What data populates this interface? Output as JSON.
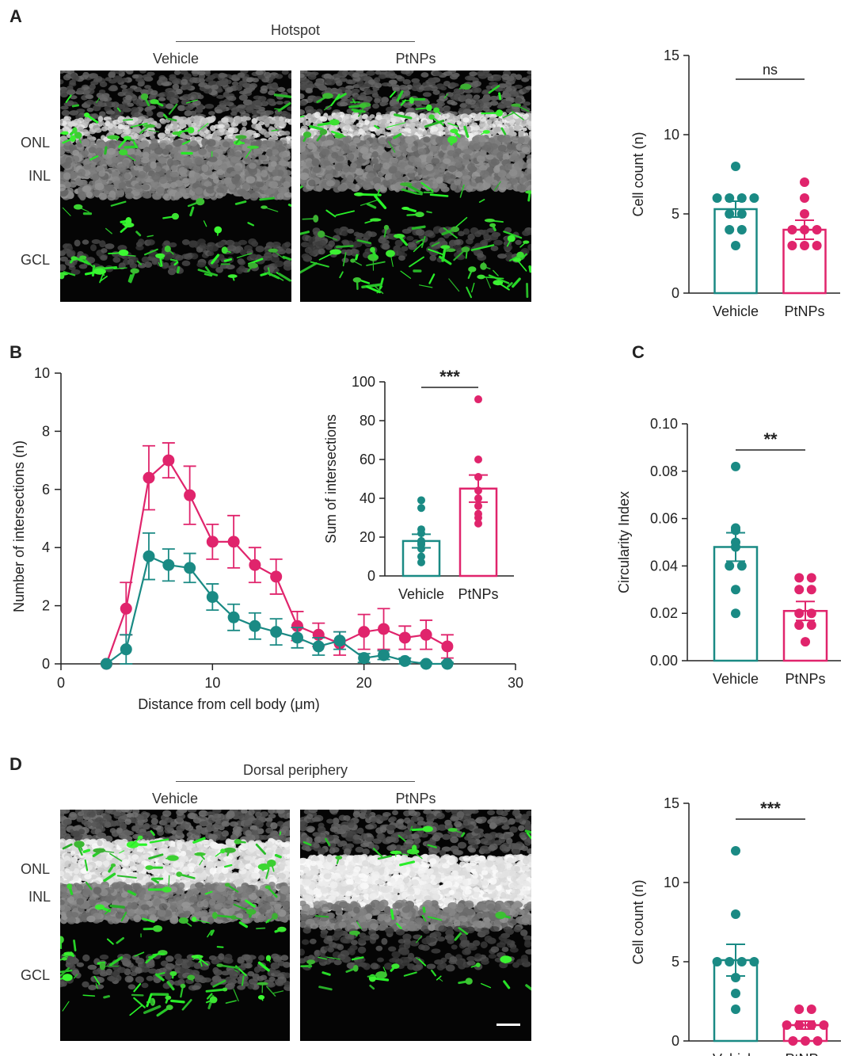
{
  "panels": {
    "a": "A",
    "b": "B",
    "c": "C",
    "d": "D"
  },
  "panel_a": {
    "region": "Hotspot",
    "conditions": [
      "Vehicle",
      "PtNPs"
    ],
    "layers": [
      "ONL",
      "INL",
      "GCL"
    ]
  },
  "panel_d": {
    "region": "Dorsal periphery",
    "conditions": [
      "Vehicle",
      "PtNPs"
    ],
    "layers": [
      "ONL",
      "INL",
      "GCL"
    ]
  },
  "colors": {
    "vehicle": "#1a8a84",
    "ptnps": "#e0246c"
  },
  "chart_data": [
    {
      "id": "a_count",
      "type": "bar",
      "categories": [
        "Vehicle",
        "PtNPs"
      ],
      "values": [
        5.3,
        4.0
      ],
      "sem": [
        0.5,
        0.6
      ],
      "points": [
        [
          8,
          6,
          6,
          6,
          6,
          5,
          5,
          4,
          4,
          3
        ],
        [
          7,
          6,
          5,
          4,
          4,
          4,
          3,
          3,
          3
        ]
      ],
      "ylabel": "Cell count (n)",
      "ylim": [
        0,
        15
      ],
      "yticks": [
        "0",
        "5",
        "10",
        "15"
      ],
      "significance": "ns"
    },
    {
      "id": "b_sholl",
      "type": "line",
      "x": [
        3.0,
        4.3,
        5.8,
        7.1,
        8.5,
        10.0,
        11.4,
        12.8,
        14.2,
        15.6,
        17.0,
        18.4,
        20.0,
        21.3,
        22.7,
        24.1,
        25.5
      ],
      "series": [
        {
          "key": "vehicle",
          "values": [
            0.0,
            0.5,
            3.7,
            3.4,
            3.3,
            2.3,
            1.6,
            1.3,
            1.1,
            0.9,
            0.6,
            0.8,
            0.2,
            0.3,
            0.1,
            0.0,
            0.0
          ],
          "err": [
            0,
            0.5,
            0.8,
            0.55,
            0.5,
            0.45,
            0.45,
            0.45,
            0.45,
            0.35,
            0.3,
            0.3,
            0.15,
            0.15,
            0.1,
            0.05,
            0.05
          ]
        },
        {
          "key": "ptnps",
          "values": [
            0.0,
            1.9,
            6.4,
            7.0,
            5.8,
            4.2,
            4.2,
            3.4,
            3.0,
            1.3,
            1.0,
            0.7,
            1.1,
            1.2,
            0.9,
            1.0,
            0.6
          ],
          "err": [
            0,
            0.9,
            1.1,
            0.6,
            1.0,
            0.6,
            0.9,
            0.6,
            0.6,
            0.5,
            0.4,
            0.4,
            0.6,
            0.7,
            0.4,
            0.5,
            0.4
          ]
        }
      ],
      "xlabel": "Distance from cell body (μm)",
      "ylabel": "Number of intersections (n)",
      "xlim": [
        0,
        30
      ],
      "ylim": [
        0,
        10
      ],
      "xticks": [
        "0",
        "10",
        "20",
        "30"
      ],
      "yticks": [
        "0",
        "2",
        "4",
        "6",
        "8",
        "10"
      ]
    },
    {
      "id": "b_inset",
      "type": "bar",
      "categories": [
        "Vehicle",
        "PtNPs"
      ],
      "values": [
        18,
        45
      ],
      "sem": [
        3.5,
        7
      ],
      "points": [
        [
          39,
          35,
          24,
          22,
          18,
          17,
          16,
          14,
          10,
          7
        ],
        [
          91,
          60,
          51,
          44,
          40,
          36,
          32,
          30,
          27
        ]
      ],
      "ylabel": "Sum of intersections",
      "ylim": [
        0,
        100
      ],
      "yticks": [
        "0",
        "20",
        "40",
        "60",
        "80",
        "100"
      ],
      "significance": "***"
    },
    {
      "id": "c_circ",
      "type": "bar",
      "categories": [
        "Vehicle",
        "PtNPs"
      ],
      "values": [
        0.048,
        0.021
      ],
      "sem": [
        0.006,
        0.004
      ],
      "points": [
        [
          0.082,
          0.056,
          0.055,
          0.05,
          0.048,
          0.04,
          0.04,
          0.03,
          0.02
        ],
        [
          0.035,
          0.035,
          0.03,
          0.03,
          0.02,
          0.02,
          0.015,
          0.015,
          0.008
        ]
      ],
      "ylabel": "Circularity Index",
      "ylim": [
        0,
        0.1
      ],
      "yticks": [
        "0.00",
        "0.02",
        "0.04",
        "0.06",
        "0.08",
        "0.10"
      ],
      "significance": "**"
    },
    {
      "id": "d_count",
      "type": "bar",
      "categories": [
        "Vehicle",
        "PtNPs"
      ],
      "values": [
        5.1,
        1.0
      ],
      "sem": [
        1.0,
        0.25
      ],
      "points": [
        [
          12,
          8,
          5,
          5,
          5,
          5,
          4,
          3,
          2
        ],
        [
          2,
          2,
          1,
          1,
          1,
          1,
          0,
          0,
          0
        ]
      ],
      "ylabel": "Cell count (n)",
      "ylim": [
        0,
        15
      ],
      "yticks": [
        "0",
        "5",
        "10",
        "15"
      ],
      "significance": "***"
    }
  ]
}
